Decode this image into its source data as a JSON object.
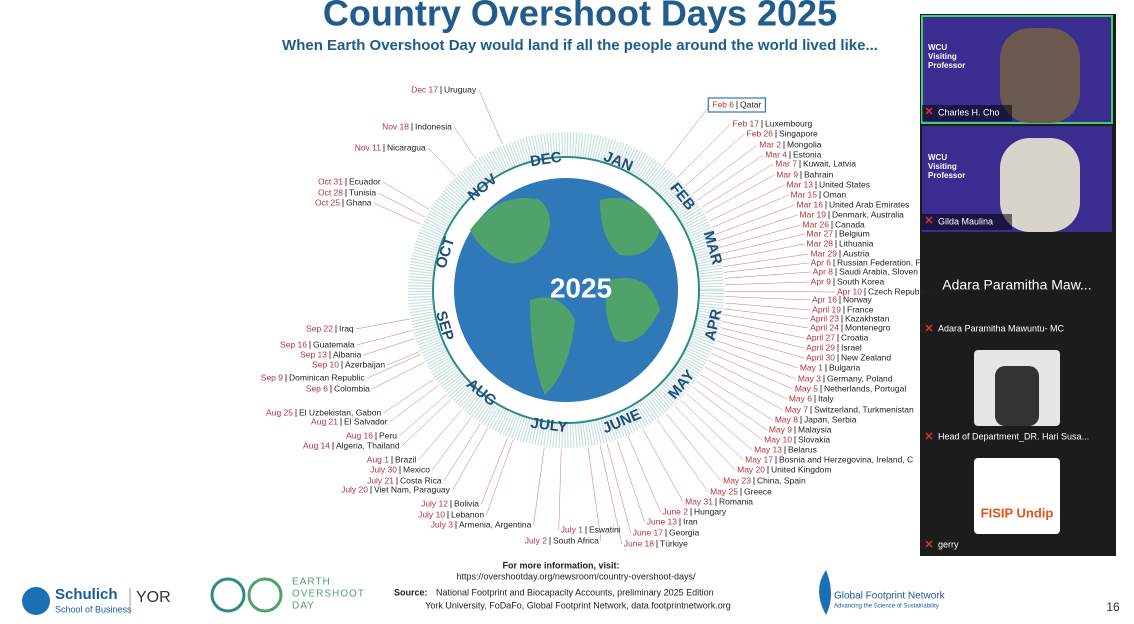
{
  "slide": {
    "title": "Country Overshoot Days 2025",
    "subtitle": "When Earth Overshoot Day would land if all the people around the world lived like...",
    "center_year": "2025",
    "months": [
      "DEC",
      "JAN",
      "FEB",
      "MAR",
      "APR",
      "MAY",
      "JUNE",
      "JULY",
      "AUG",
      "SEP",
      "OCT",
      "NOV"
    ],
    "countries": [
      {
        "date": "Dec 17",
        "country": "Uruguay"
      },
      {
        "date": "Nov 18",
        "country": "Indonesia"
      },
      {
        "date": "Nov 11",
        "country": "Nicaragua"
      },
      {
        "date": "Oct 31",
        "country": "Ecuador"
      },
      {
        "date": "Oct 28",
        "country": "Tunisia"
      },
      {
        "date": "Oct 25",
        "country": "Ghana"
      },
      {
        "date": "Sep 22",
        "country": "Iraq"
      },
      {
        "date": "Sep 16",
        "country": "Guatemala"
      },
      {
        "date": "Sep 13",
        "country": "Albania"
      },
      {
        "date": "Sep 10",
        "country": "Azerbaijan"
      },
      {
        "date": "Sep 9",
        "country": "Dominican Republic"
      },
      {
        "date": "Sep 6",
        "country": "Colombia"
      },
      {
        "date": "Aug 25",
        "country": "El Uzbekistan, Gabon"
      },
      {
        "date": "Aug 21",
        "country": "El Salvador"
      },
      {
        "date": "Aug 16",
        "country": "Peru"
      },
      {
        "date": "Aug 14",
        "country": "Algeria, Thailand"
      },
      {
        "date": "Aug 1",
        "country": "Brazil"
      },
      {
        "date": "July 30",
        "country": "Mexico"
      },
      {
        "date": "July 21",
        "country": "Costa Rica"
      },
      {
        "date": "July 20",
        "country": "Viet Nam, Paraguay"
      },
      {
        "date": "July 12",
        "country": "Bolivia"
      },
      {
        "date": "July 10",
        "country": "Lebanon"
      },
      {
        "date": "July 3",
        "country": "Armenia, Argentina"
      },
      {
        "date": "July 1",
        "country": "Eswatini"
      },
      {
        "date": "July 2",
        "country": "South Africa"
      },
      {
        "date": "June 13",
        "country": "Iran"
      },
      {
        "date": "June 17",
        "country": "Georgia"
      },
      {
        "date": "June 18",
        "country": "Türkiye"
      },
      {
        "date": "June 2",
        "country": "Hungary"
      },
      {
        "date": "May 31",
        "country": "Romania"
      },
      {
        "date": "May 25",
        "country": "Greece"
      },
      {
        "date": "May 23",
        "country": "China, Spain"
      },
      {
        "date": "May 20",
        "country": "United Kingdom"
      },
      {
        "date": "May 17",
        "country": "Bosnia and Herzegovina, Ireland, C"
      },
      {
        "date": "May 13",
        "country": "Belarus"
      },
      {
        "date": "May 10",
        "country": "Slovakia"
      },
      {
        "date": "May 9",
        "country": "Malaysia"
      },
      {
        "date": "May 8",
        "country": "Japan, Serbia"
      },
      {
        "date": "May 7",
        "country": "Switzerland, Turkmenistan"
      },
      {
        "date": "May 6",
        "country": "Italy"
      },
      {
        "date": "May 5",
        "country": "Netherlands, Portugal"
      },
      {
        "date": "May 3",
        "country": "Germany, Poland"
      },
      {
        "date": "May 1",
        "country": "Bulgaria"
      },
      {
        "date": "April 30",
        "country": "New Zealand"
      },
      {
        "date": "April 29",
        "country": "Israel"
      },
      {
        "date": "April 27",
        "country": "Croatia"
      },
      {
        "date": "April 24",
        "country": "Montenegro"
      },
      {
        "date": "April 23",
        "country": "Kazakhstan"
      },
      {
        "date": "April 19",
        "country": "France"
      },
      {
        "date": "Apr 16",
        "country": "Norway"
      },
      {
        "date": "Apr 10",
        "country": "Czech Republic, Sw"
      },
      {
        "date": "Apr 9",
        "country": "South Korea"
      },
      {
        "date": "Apr 8",
        "country": "Saudi Arabia, Sloven"
      },
      {
        "date": "Apr 6",
        "country": "Russian Federation, F"
      },
      {
        "date": "Mar 29",
        "country": "Austria"
      },
      {
        "date": "Mar 28",
        "country": "Lithuania"
      },
      {
        "date": "Mar 27",
        "country": "Belgium"
      },
      {
        "date": "Mar 26",
        "country": "Canada"
      },
      {
        "date": "Mar 19",
        "country": "Denmark, Australia"
      },
      {
        "date": "Mar 16",
        "country": "United Arab Emirates"
      },
      {
        "date": "Mar 15",
        "country": "Oman"
      },
      {
        "date": "Mar 13",
        "country": "United States"
      },
      {
        "date": "Mar 9",
        "country": "Bahrain"
      },
      {
        "date": "Mar 7",
        "country": "Kuwait, Latvia"
      },
      {
        "date": "Mar 4",
        "country": "Estonia"
      },
      {
        "date": "Mar 2",
        "country": "Mongolia"
      },
      {
        "date": "Feb 26",
        "country": "Singapore"
      },
      {
        "date": "Feb 17",
        "country": "Luxembourg"
      },
      {
        "date": "Feb 6",
        "country": "Qatar"
      }
    ],
    "footer": {
      "more_info": "For more information, visit:",
      "url": "https://overshootday.org/newsroom/country-overshoot-days/",
      "source_label": "Source:",
      "source_text": "National Footprint and Biocapacity Accounts, preliminary 2025 Edition",
      "source_line2": "York University, FoDaFo, Global Footprint Network, data.footprintnetwork.org"
    },
    "logos": {
      "schulich": "Schulich",
      "schulich_sub": "School of Business",
      "york": "YOR",
      "eod": [
        "EARTH",
        "OVERSHOOT",
        "DAY"
      ],
      "gfn": "Global Footprint Network",
      "gfn_sub": "Advancing the Science of Sustainability"
    },
    "page_number": "16"
  },
  "participants": [
    {
      "name": "Charles H. Cho",
      "tile_title": [
        "WCU",
        "Visiting",
        "Professor"
      ]
    },
    {
      "name": "Gilda Maulina",
      "tile_title": [
        "WCU",
        "Visiting",
        "Professor"
      ]
    },
    {
      "name": "Adara Paramitha Mawuntu- MC",
      "display_name": "Adara Paramitha Maw..."
    },
    {
      "name": "Head of Department_DR. Hari Susa..."
    },
    {
      "name": "gerry",
      "tile_title": [
        "FISIP Undip"
      ]
    }
  ]
}
